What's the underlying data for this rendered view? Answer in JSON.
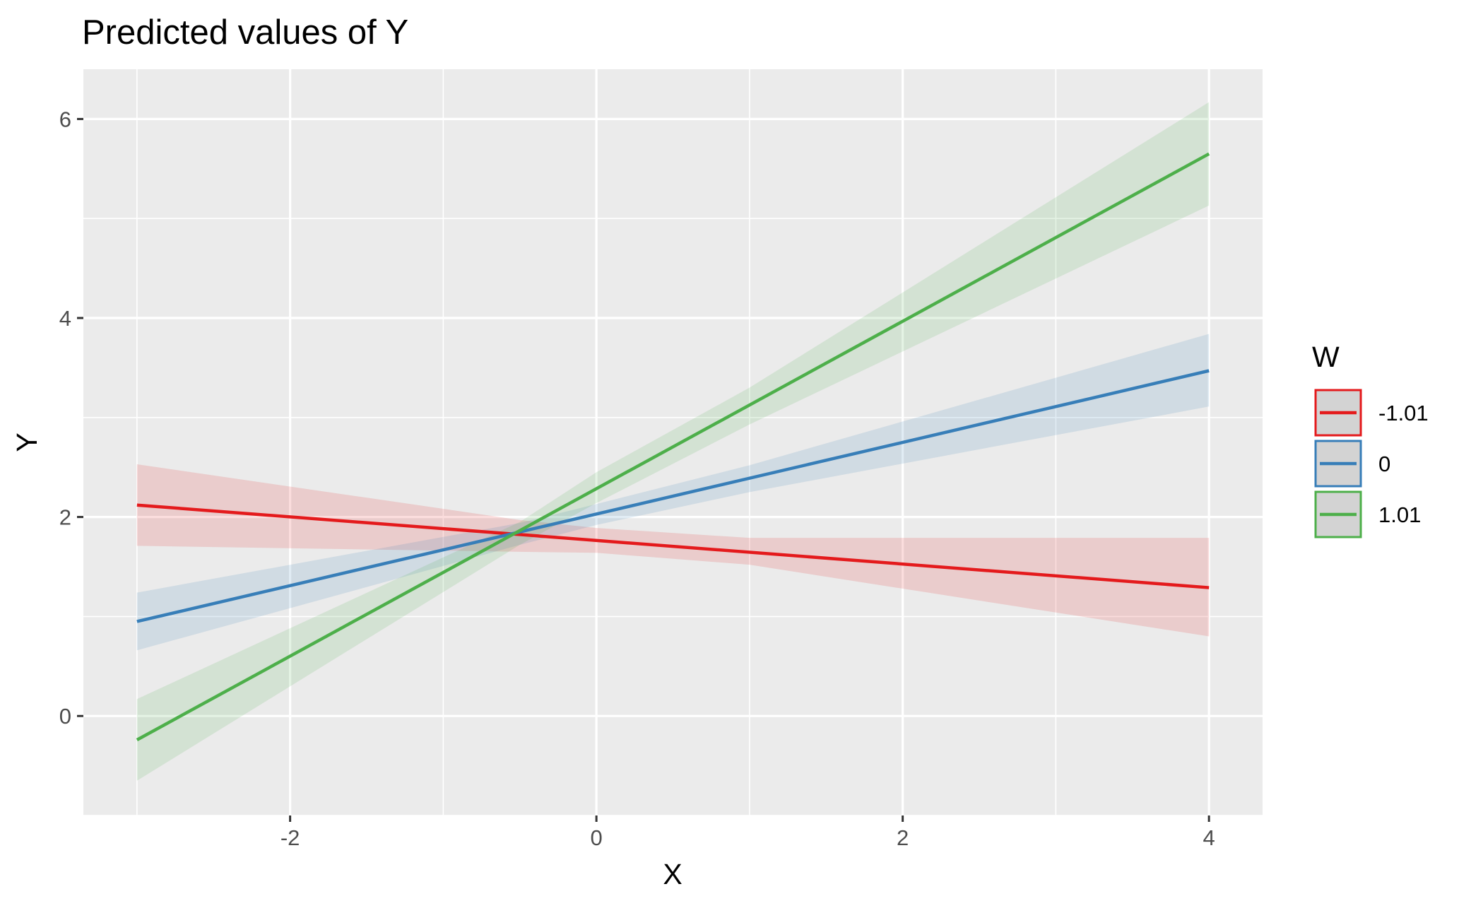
{
  "chart_data": {
    "type": "line",
    "title": "Predicted values of Y",
    "xlabel": "X",
    "ylabel": "Y",
    "xlim": [
      -3.35,
      4.35
    ],
    "ylim": [
      -1.0,
      6.5
    ],
    "x_ticks": [
      -2,
      0,
      2,
      4
    ],
    "y_ticks": [
      0,
      2,
      4,
      6
    ],
    "x_tick_labels": [
      "-2",
      "0",
      "2",
      "4"
    ],
    "y_tick_labels": [
      "0",
      "2",
      "4",
      "6"
    ],
    "grid": true,
    "background": "#ebebeb",
    "legend": {
      "title": "W",
      "position": "right"
    },
    "series": [
      {
        "name": "-1.01",
        "color": "#e41a1c",
        "x": [
          -3,
          4
        ],
        "y": [
          2.12,
          1.29
        ],
        "ci_x": [
          -3,
          -0.5,
          0,
          1,
          4
        ],
        "ci_lower": [
          1.71,
          1.65,
          1.64,
          1.52,
          0.8
        ],
        "ci_upper": [
          2.53,
          1.97,
          1.89,
          1.79,
          1.79
        ]
      },
      {
        "name": "0",
        "color": "#377eb8",
        "x": [
          -3,
          4
        ],
        "y": [
          0.95,
          3.47
        ],
        "ci_x": [
          -3,
          -0.5,
          0,
          1,
          4
        ],
        "ci_lower": [
          0.66,
          1.72,
          1.92,
          2.25,
          3.11
        ],
        "ci_upper": [
          1.24,
          1.94,
          2.13,
          2.52,
          3.84
        ]
      },
      {
        "name": "1.01",
        "color": "#4daf4a",
        "x": [
          -3,
          4
        ],
        "y": [
          -0.24,
          5.65
        ],
        "ci_x": [
          -3,
          -0.5,
          0,
          1,
          4
        ],
        "ci_lower": [
          -0.65,
          1.72,
          2.14,
          2.93,
          5.13
        ],
        "ci_upper": [
          0.17,
          1.95,
          2.45,
          3.3,
          6.17
        ]
      }
    ]
  }
}
